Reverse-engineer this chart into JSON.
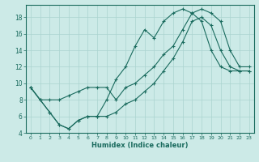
{
  "xlabel": "Humidex (Indice chaleur)",
  "bg_color": "#cceae7",
  "grid_color": "#aad4d0",
  "line_color": "#1a6b5e",
  "line1_x": [
    0,
    1,
    2,
    3,
    4,
    5,
    6,
    7,
    8,
    9,
    10,
    11,
    12,
    13,
    14,
    15,
    16,
    17,
    18,
    19,
    20,
    21,
    22,
    23
  ],
  "line1_y": [
    9.5,
    8.0,
    6.5,
    5.0,
    4.5,
    5.5,
    6.0,
    6.0,
    8.0,
    10.5,
    12.0,
    14.5,
    16.5,
    15.5,
    17.5,
    18.5,
    19.0,
    18.5,
    17.5,
    14.0,
    12.0,
    11.5,
    11.5,
    11.5
  ],
  "line2_x": [
    0,
    1,
    2,
    3,
    4,
    5,
    6,
    7,
    8,
    9,
    10,
    11,
    12,
    13,
    14,
    15,
    16,
    17,
    18,
    19,
    20,
    21,
    22,
    23
  ],
  "line2_y": [
    9.5,
    8.0,
    6.5,
    5.0,
    4.5,
    5.5,
    6.0,
    6.0,
    6.0,
    6.5,
    7.5,
    8.0,
    9.0,
    10.0,
    11.5,
    13.0,
    15.0,
    17.5,
    18.0,
    17.0,
    14.0,
    12.0,
    11.5,
    11.5
  ],
  "line3_x": [
    0,
    1,
    2,
    3,
    4,
    5,
    6,
    7,
    8,
    9,
    10,
    11,
    12,
    13,
    14,
    15,
    16,
    17,
    18,
    19,
    20,
    21,
    22,
    23
  ],
  "line3_y": [
    9.5,
    8.0,
    8.0,
    8.0,
    8.5,
    9.0,
    9.5,
    9.5,
    9.5,
    8.0,
    9.5,
    10.0,
    11.0,
    12.0,
    13.5,
    14.5,
    16.5,
    18.5,
    19.0,
    18.5,
    17.5,
    14.0,
    12.0,
    12.0
  ],
  "ylim": [
    4,
    19.5
  ],
  "xlim": [
    -0.5,
    23.5
  ],
  "yticks": [
    4,
    6,
    8,
    10,
    12,
    14,
    16,
    18
  ],
  "xticks": [
    0,
    1,
    2,
    3,
    4,
    5,
    6,
    7,
    8,
    9,
    10,
    11,
    12,
    13,
    14,
    15,
    16,
    17,
    18,
    19,
    20,
    21,
    22,
    23
  ]
}
